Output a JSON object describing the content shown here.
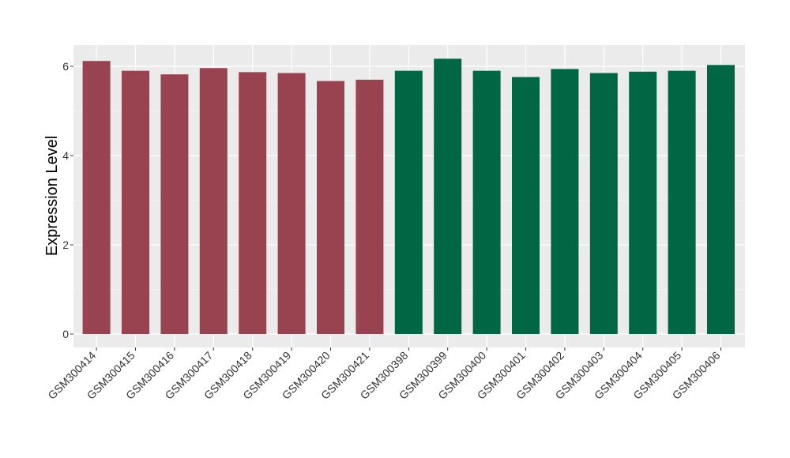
{
  "chart_data": {
    "type": "bar",
    "title": "",
    "xlabel": "",
    "ylabel": "Expression Level",
    "ylim": [
      0,
      6.5
    ],
    "yticks": [
      0,
      2,
      4,
      6
    ],
    "grid": true,
    "legend": "none",
    "colors": {
      "panel": "#EBEBEB",
      "grid": "#FFFFFF",
      "group_1": "#9A4350",
      "group_2": "#006644"
    },
    "categories": [
      "GSM300414",
      "GSM300415",
      "GSM300416",
      "GSM300417",
      "GSM300418",
      "GSM300419",
      "GSM300420",
      "GSM300421",
      "GSM300398",
      "GSM300399",
      "GSM300400",
      "GSM300401",
      "GSM300402",
      "GSM300403",
      "GSM300404",
      "GSM300405",
      "GSM300406"
    ],
    "values": [
      6.12,
      5.9,
      5.82,
      5.96,
      5.87,
      5.85,
      5.67,
      5.7,
      5.9,
      6.17,
      5.9,
      5.76,
      5.94,
      5.85,
      5.88,
      5.9,
      6.03
    ],
    "groups": [
      1,
      1,
      1,
      1,
      1,
      1,
      1,
      1,
      2,
      2,
      2,
      2,
      2,
      2,
      2,
      2,
      2
    ]
  }
}
